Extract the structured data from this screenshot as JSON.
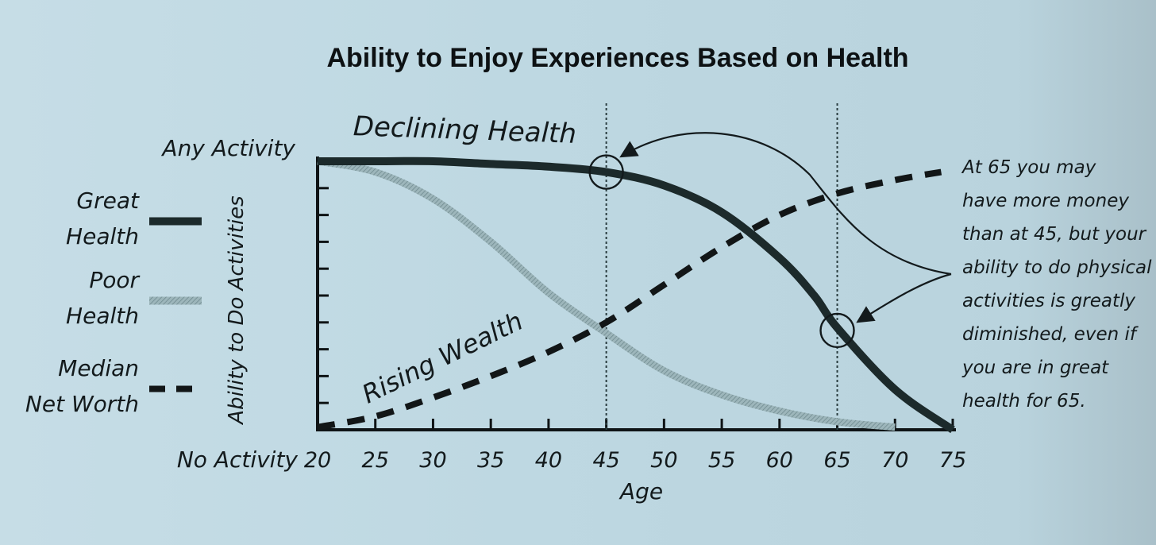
{
  "chart_data": {
    "type": "line",
    "title": "Ability to Enjoy Experiences Based on Health",
    "xlabel": "Age",
    "ylabel": "Ability to Do Activities",
    "xlim": [
      20,
      75
    ],
    "ylim": [
      0,
      100
    ],
    "x_ticks": [
      "20",
      "25",
      "30",
      "35",
      "40",
      "45",
      "50",
      "55",
      "60",
      "65",
      "70",
      "75"
    ],
    "y_top_label": "Any Activity",
    "y_bottom_label": "No Activity",
    "legend": [
      {
        "label_line1": "Great",
        "label_line2": "Health",
        "style": "solid-dark"
      },
      {
        "label_line1": "Poor",
        "label_line2": "Health",
        "style": "solid-light"
      },
      {
        "label_line1": "Median",
        "label_line2": "Net Worth",
        "style": "dashed"
      }
    ],
    "legend_position": "left",
    "grid": false,
    "series": [
      {
        "name": "Great Health",
        "color": "#1c2a2b",
        "x": [
          20,
          25,
          30,
          35,
          40,
          45,
          50,
          55,
          60,
          63,
          65,
          70,
          75
        ],
        "y": [
          100,
          100,
          100,
          99,
          98,
          96,
          91,
          81,
          64,
          50,
          38,
          15,
          0
        ]
      },
      {
        "name": "Poor Health",
        "color": "#8fa9ae",
        "x": [
          20,
          25,
          30,
          35,
          40,
          45,
          50,
          55,
          60,
          65,
          70
        ],
        "y": [
          100,
          96,
          86,
          70,
          51,
          36,
          22,
          13,
          7,
          3,
          1
        ]
      },
      {
        "name": "Median Net Worth",
        "color": "#121617",
        "style": "dashed",
        "x": [
          20,
          25,
          30,
          35,
          40,
          45,
          50,
          55,
          60,
          65,
          70,
          74
        ],
        "y": [
          1,
          5,
          12,
          20,
          29,
          40,
          54,
          68,
          80,
          88,
          93,
          96
        ]
      }
    ],
    "annotations": {
      "declining_label": "Declining Health",
      "rising_label": "Rising Wealth",
      "vlines": [
        45,
        65
      ],
      "circles": [
        {
          "x": 45,
          "y": 96
        },
        {
          "x": 65,
          "y": 37
        }
      ],
      "note_lines": [
        "At 65 you may",
        "have more money",
        "than at 45, but your",
        "ability to do physical",
        "activities is greatly",
        "diminished, even if",
        "you are in great",
        "health for 65."
      ]
    }
  }
}
